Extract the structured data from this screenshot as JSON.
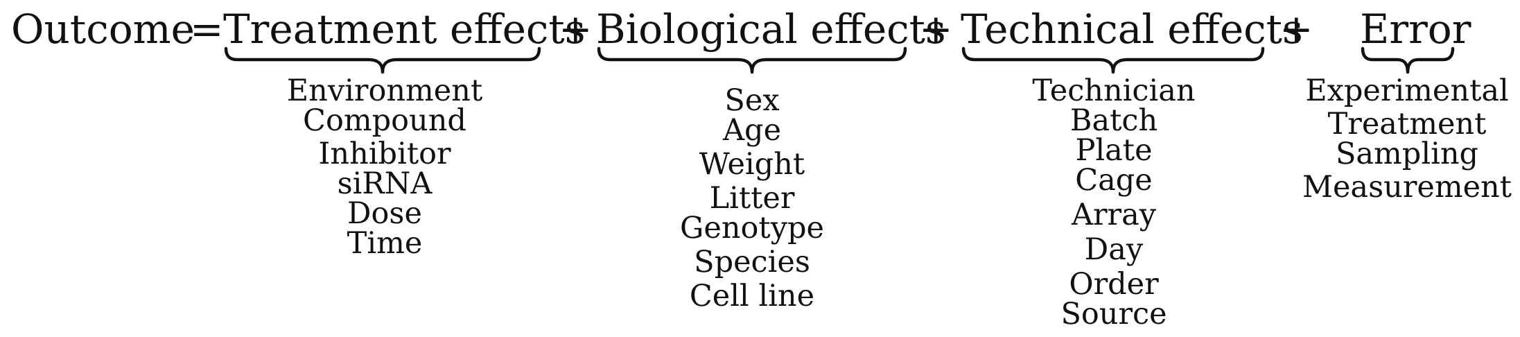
{
  "equation": {
    "outcome": "Outcome",
    "equals": "=",
    "plus": "+",
    "terms": [
      {
        "label": "Treatment effects",
        "items": [
          "Environment",
          "Compound",
          "Inhibitor",
          "siRNA",
          "Dose",
          "Time"
        ]
      },
      {
        "label": "Biological effects",
        "items": [
          "Sex",
          "Age",
          "Weight",
          "Litter",
          "Genotype",
          "Species",
          "Cell line"
        ]
      },
      {
        "label": "Technical effects",
        "items": [
          "Technician",
          "Batch",
          "Plate",
          "Cage",
          "Array",
          "Day",
          "Order",
          "Source"
        ]
      },
      {
        "label": "Error",
        "items": [
          "Experimental",
          "Treatment",
          "Sampling",
          "Measurement"
        ]
      }
    ]
  }
}
